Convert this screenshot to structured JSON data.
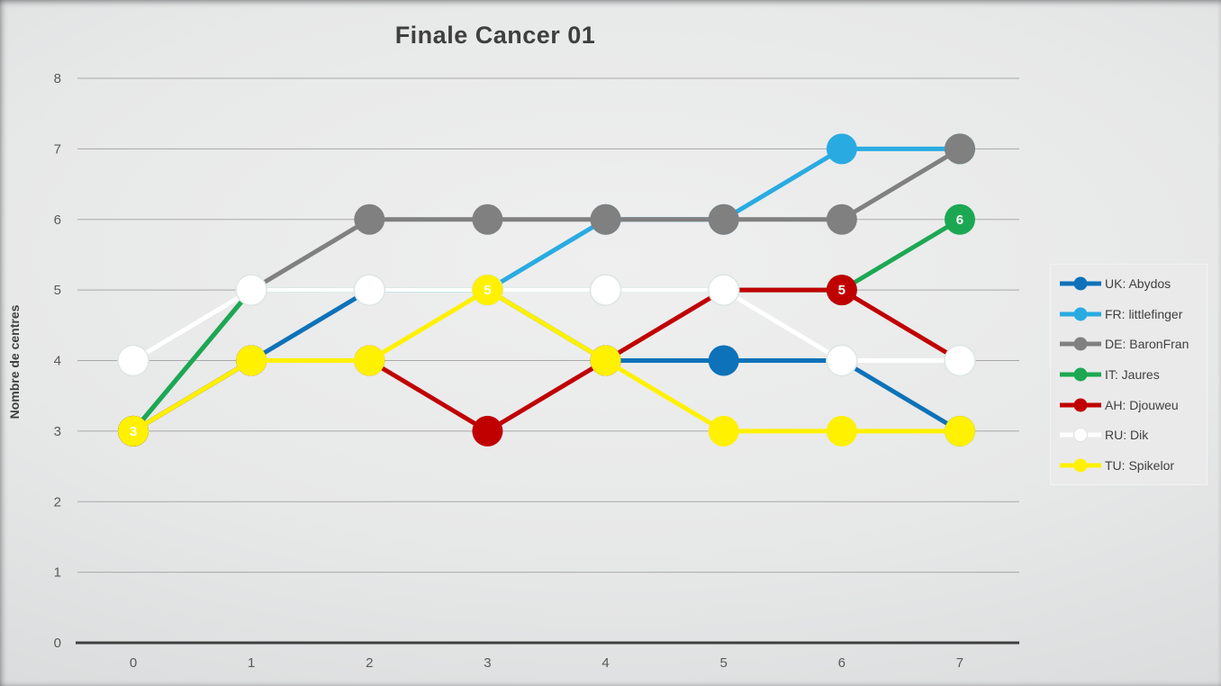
{
  "chart_data": {
    "type": "line",
    "title": "Finale Cancer 01",
    "subtitle": "",
    "xlabel": "",
    "ylabel": "Nombre de centres",
    "x": [
      0,
      1,
      2,
      3,
      4,
      5,
      6,
      7
    ],
    "yticks": [
      0,
      1,
      2,
      3,
      4,
      5,
      6,
      7,
      8
    ],
    "ylim": [
      0,
      8
    ],
    "grid": true,
    "legend_position": "right",
    "series": [
      {
        "name": "UK: Abydos",
        "color": "#0D72B9",
        "values": [
          3,
          4,
          5,
          5,
          4,
          4,
          4,
          3
        ]
      },
      {
        "name": "FR: littlefinger",
        "color": "#29ABE2",
        "values": [
          3,
          5,
          5,
          5,
          6,
          6,
          7,
          7
        ]
      },
      {
        "name": "DE: BaronFran",
        "color": "#808080",
        "values": [
          3,
          5,
          6,
          6,
          6,
          6,
          6,
          7
        ]
      },
      {
        "name": "IT: Jaures",
        "color": "#1CA853",
        "values": [
          3,
          5,
          5,
          5,
          5,
          5,
          5,
          6
        ]
      },
      {
        "name": "AH: Djouweu",
        "color": "#C00000",
        "values": [
          3,
          4,
          4,
          3,
          4,
          5,
          5,
          4
        ]
      },
      {
        "name": "RU: Dik",
        "color": "#FFFFFF",
        "values": [
          4,
          5,
          5,
          5,
          5,
          5,
          4,
          4
        ]
      },
      {
        "name": "TU: Spikelor",
        "color": "#FFF100",
        "values": [
          3,
          4,
          4,
          5,
          4,
          3,
          3,
          3
        ]
      }
    ],
    "point_labels": [
      {
        "series": "TU: Spikelor",
        "x": 0,
        "text": "3"
      },
      {
        "series": "TU: Spikelor",
        "x": 3,
        "text": "5"
      },
      {
        "series": "AH: Djouweu",
        "x": 6,
        "text": "5"
      },
      {
        "series": "IT: Jaures",
        "x": 7,
        "text": "6"
      }
    ],
    "colors": {
      "axis_line": "#3F3F3F",
      "gridline": "#A9A9A9",
      "tick_text": "#595959",
      "title_text": "#3F3F3F",
      "legend_text": "#404040"
    }
  }
}
